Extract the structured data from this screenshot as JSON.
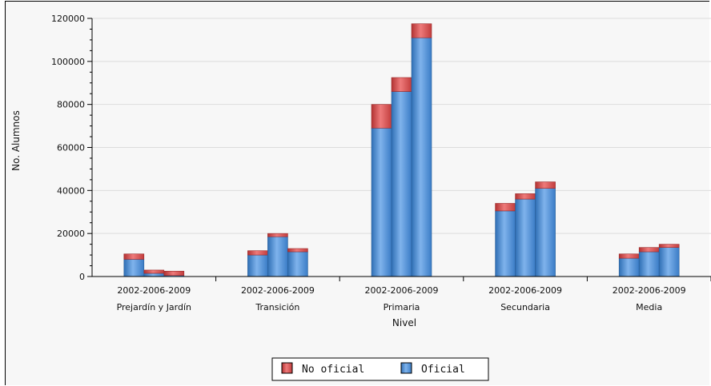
{
  "chart_data": {
    "type": "bar",
    "stacked": true,
    "ylabel": "No. Alumnos",
    "xlabel": "Nivel",
    "ylim": [
      0,
      120000
    ],
    "yticks": [
      "0",
      "20000",
      "40000",
      "60000",
      "80000",
      "100000",
      "120000"
    ],
    "grid": true,
    "legend_position": "bottom",
    "groups": [
      {
        "name": "Prejardín y Jardín",
        "years_label": "2002-2006-2009"
      },
      {
        "name": "Transición",
        "years_label": "2002-2006-2009"
      },
      {
        "name": "Primaria",
        "years_label": "2002-2006-2009"
      },
      {
        "name": "Secundaria",
        "years_label": "2002-2006-2009"
      },
      {
        "name": "Media",
        "years_label": "2002-2006-2009"
      }
    ],
    "years": [
      "2002",
      "2006",
      "2009"
    ],
    "series": [
      {
        "name": "Oficial",
        "color": "#4a8fd6",
        "values": [
          [
            8000,
            1500,
            500
          ],
          [
            10000,
            18500,
            11500
          ],
          [
            69000,
            86000,
            111000
          ],
          [
            30500,
            36000,
            41000
          ],
          [
            8500,
            11500,
            13500
          ]
        ]
      },
      {
        "name": "No oficial",
        "color": "#d84a4a",
        "values": [
          [
            2500,
            1500,
            2000
          ],
          [
            2000,
            1500,
            1500
          ],
          [
            11000,
            6500,
            6500
          ],
          [
            3500,
            2500,
            3000
          ],
          [
            2000,
            2000,
            1500
          ]
        ]
      }
    ],
    "legend": [
      "No oficial",
      "Oficial"
    ]
  }
}
